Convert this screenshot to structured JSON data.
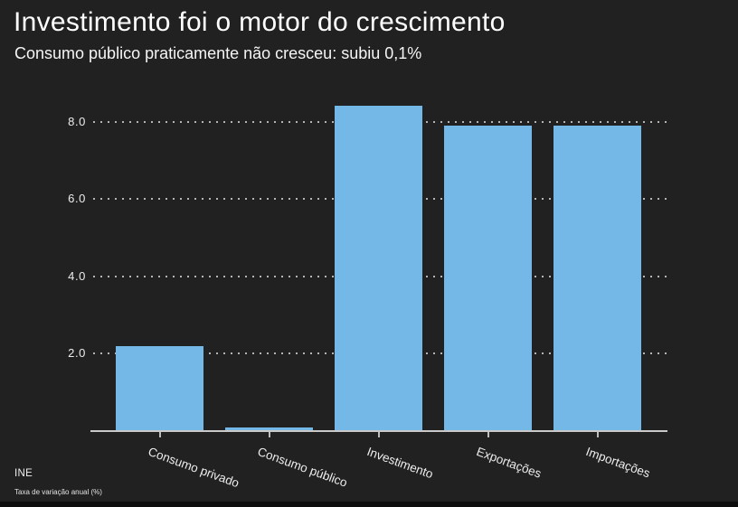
{
  "header": {
    "title": "Investimento foi o motor do crescimento",
    "subtitle": "Consumo público praticamente não cresceu: subiu 0,1%"
  },
  "footer": {
    "source": "INE",
    "note": "Taxa de variação anual (%)"
  },
  "colors": {
    "background": "#212121",
    "bar": "#74b8e8",
    "title_text": "#ffffff",
    "grid": "#cfcfcf",
    "axis": "#c9c9c9",
    "footer_strip": "#0d0d0d"
  },
  "chart_data": {
    "type": "bar",
    "title": "Investimento foi o motor do crescimento",
    "subtitle": "Consumo público praticamente não cresceu: subiu 0,1%",
    "categories": [
      "Consumo privado",
      "Consumo público",
      "Investimento",
      "Exportações",
      "Importações"
    ],
    "values": [
      2.2,
      0.1,
      8.4,
      7.9,
      7.9
    ],
    "yticks": [
      2.0,
      4.0,
      6.0,
      8.0
    ],
    "ytick_labels": [
      "2.0",
      "4.0",
      "6.0",
      "8.0"
    ],
    "ylim": [
      0,
      8.6
    ],
    "xlabel": "",
    "ylabel": "Taxa de variação anual (%)",
    "grid": "horizontal-dotted",
    "legend": "none",
    "bar_color": "#74b8e8",
    "source": "INE"
  }
}
